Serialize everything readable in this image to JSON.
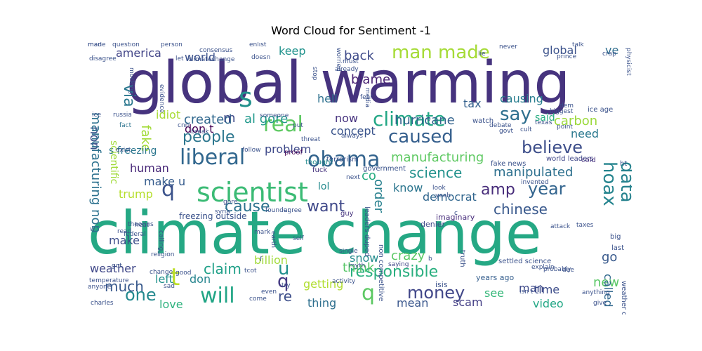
{
  "chart_data": {
    "type": "wordcloud",
    "title": "Word Cloud for Sentiment -1",
    "words": [
      {
        "text": "global warming",
        "color": "#46337e"
      },
      {
        "text": "climate change",
        "color": "#25a884"
      },
      {
        "text": "scientist",
        "color": "#3bbb75"
      },
      {
        "text": "obama",
        "color": "#33638d"
      },
      {
        "text": "liberal",
        "color": "#31678e"
      },
      {
        "text": "believe",
        "color": "#3d4e8a"
      },
      {
        "text": "climate",
        "color": "#22a785"
      },
      {
        "text": "caused",
        "color": "#355f8d"
      },
      {
        "text": "people",
        "color": "#2b768e"
      },
      {
        "text": "real",
        "color": "#5ec962"
      },
      {
        "text": "say",
        "color": "#2e6f8e"
      },
      {
        "text": "man made",
        "color": "#a5db36"
      },
      {
        "text": "s",
        "color": "#21918c"
      },
      {
        "text": "q",
        "color": "#3b528b"
      },
      {
        "text": "q",
        "color": "#5cc863"
      },
      {
        "text": "q",
        "color": "#443a83"
      },
      {
        "text": "u",
        "color": "#21908d"
      },
      {
        "text": "t",
        "color": "#bddf26"
      },
      {
        "text": "will",
        "color": "#21a585"
      },
      {
        "text": "one",
        "color": "#23898e"
      },
      {
        "text": "much",
        "color": "#38598c"
      },
      {
        "text": "responsible",
        "color": "#29af7f"
      },
      {
        "text": "money",
        "color": "#404688"
      },
      {
        "text": "year",
        "color": "#32648e"
      },
      {
        "text": "amp",
        "color": "#472c7a"
      },
      {
        "text": "hoax",
        "color": "#25848e"
      },
      {
        "text": "data",
        "color": "#26828e"
      },
      {
        "text": "cause",
        "color": "#2c728e"
      },
      {
        "text": "want",
        "color": "#3f4889"
      },
      {
        "text": "claim",
        "color": "#1fa088"
      },
      {
        "text": "chinese",
        "color": "#38588c"
      },
      {
        "text": "manufacturing",
        "color": "#5ec962"
      },
      {
        "text": "science",
        "color": "#21918c"
      },
      {
        "text": "manipulated",
        "color": "#2d708e"
      },
      {
        "text": "hurricane",
        "color": "#33638d"
      },
      {
        "text": "concept",
        "color": "#3a548c"
      },
      {
        "text": "al gore",
        "color": "#1f988b"
      },
      {
        "text": "created",
        "color": "#31688e"
      },
      {
        "text": "blame",
        "color": "#482173"
      },
      {
        "text": "back",
        "color": "#3e4a89"
      },
      {
        "text": "america",
        "color": "#414487"
      },
      {
        "text": "world",
        "color": "#3b518b"
      },
      {
        "text": "keep",
        "color": "#20928c"
      },
      {
        "text": "via",
        "color": "#2a778e"
      },
      {
        "text": "non",
        "color": "#3b528b"
      },
      {
        "text": "manufacturing non",
        "color": "#2c718e"
      },
      {
        "text": "fake",
        "color": "#a2da37"
      },
      {
        "text": "idiot",
        "color": "#a8db34"
      },
      {
        "text": "don t",
        "color": "#440154"
      },
      {
        "text": "s freezing",
        "color": "#2a768e"
      },
      {
        "text": "human",
        "color": "#482878"
      },
      {
        "text": "make u",
        "color": "#365c8d"
      },
      {
        "text": "trump",
        "color": "#b5de2b"
      },
      {
        "text": "problem",
        "color": "#3e4989"
      },
      {
        "text": "lol",
        "color": "#238a8d"
      },
      {
        "text": "co",
        "color": "#26ad81"
      },
      {
        "text": "know",
        "color": "#2b758e"
      },
      {
        "text": "democrat",
        "color": "#31668e"
      },
      {
        "text": "order",
        "color": "#27808e"
      },
      {
        "text": "hell",
        "color": "#2d708e"
      },
      {
        "text": "now",
        "color": "#46327e"
      },
      {
        "text": "tax",
        "color": "#34618d"
      },
      {
        "text": "causing",
        "color": "#287d8e"
      },
      {
        "text": "carbon",
        "color": "#9bd93c"
      },
      {
        "text": "need",
        "color": "#2a788e"
      },
      {
        "text": "said",
        "color": "#27ad81"
      },
      {
        "text": "global",
        "color": "#3b528b"
      },
      {
        "text": "ve",
        "color": "#2e6e8e"
      },
      {
        "text": "m",
        "color": "#3e4a89"
      },
      {
        "text": "make",
        "color": "#3d4d8a"
      },
      {
        "text": "weather",
        "color": "#3f4788"
      },
      {
        "text": "left",
        "color": "#21918c"
      },
      {
        "text": "don",
        "color": "#25848e"
      },
      {
        "text": "billion",
        "color": "#a0da39"
      },
      {
        "text": "think",
        "color": "#56c667"
      },
      {
        "text": "snow",
        "color": "#228c8d"
      },
      {
        "text": "crazy",
        "color": "#5ac864"
      },
      {
        "text": "getting",
        "color": "#b0dd2f"
      },
      {
        "text": "thing",
        "color": "#2e6f8e"
      },
      {
        "text": "re",
        "color": "#3d4e8a"
      },
      {
        "text": "mean",
        "color": "#39568c"
      },
      {
        "text": "scam",
        "color": "#433e85"
      },
      {
        "text": "see",
        "color": "#35b779"
      },
      {
        "text": "man",
        "color": "#3e4989"
      },
      {
        "text": "time",
        "color": "#3d4d8a"
      },
      {
        "text": "new",
        "color": "#58c765"
      },
      {
        "text": "video",
        "color": "#22a785"
      },
      {
        "text": "called",
        "color": "#31688e"
      },
      {
        "text": "go",
        "color": "#38598c"
      },
      {
        "text": "love",
        "color": "#2db27d"
      },
      {
        "text": "freezing outside",
        "color": "#3b528b"
      },
      {
        "text": "settled science",
        "color": "#3b528b"
      },
      {
        "text": "years ago",
        "color": "#355e8d"
      },
      {
        "text": "denier",
        "color": "#3e4989"
      },
      {
        "text": "imaginary",
        "color": "#472d7b"
      },
      {
        "text": "government",
        "color": "#3a538b"
      },
      {
        "text": "world leaders",
        "color": "#3f4788"
      },
      {
        "text": "fake news",
        "color": "#3b528b"
      },
      {
        "text": "cold",
        "color": "#472f7d"
      },
      {
        "text": "scientific",
        "color": "#a0da39"
      },
      {
        "text": "fact",
        "color": "#2c738e"
      },
      {
        "text": "terrorism",
        "color": "#3b528b"
      },
      {
        "text": "thought",
        "color": "#238a8d"
      },
      {
        "text": "proof",
        "color": "#440154"
      },
      {
        "text": "fuck",
        "color": "#46337e"
      },
      {
        "text": "leaders duped",
        "color": "#3b528b"
      },
      {
        "text": "guy",
        "color": "#46337e"
      },
      {
        "text": "non competitive",
        "color": "#3b528b"
      },
      {
        "text": "saying",
        "color": "#404688"
      },
      {
        "text": "myth",
        "color": "#3b528b"
      },
      {
        "text": "single",
        "color": "#3b528b"
      },
      {
        "text": "truth",
        "color": "#3b528b"
      },
      {
        "text": "probably",
        "color": "#3b528b"
      },
      {
        "text": "due",
        "color": "#3b528b"
      },
      {
        "text": "explain",
        "color": "#3b528b"
      },
      {
        "text": "anything",
        "color": "#3b528b"
      },
      {
        "text": "isn t",
        "color": "#3b528b"
      },
      {
        "text": "give",
        "color": "#3b528b"
      },
      {
        "text": "weather channel",
        "color": "#3b528b"
      },
      {
        "text": "attack",
        "color": "#3b528b"
      },
      {
        "text": "taxes",
        "color": "#3b528b"
      },
      {
        "text": "big",
        "color": "#3b528b"
      },
      {
        "text": "last",
        "color": "#3b528b"
      },
      {
        "text": "ht",
        "color": "#3b528b"
      },
      {
        "text": "physicist",
        "color": "#3b528b"
      },
      {
        "text": "ice age",
        "color": "#3b528b"
      },
      {
        "text": "biggest",
        "color": "#3b528b"
      },
      {
        "text": "dem",
        "color": "#3b528b"
      },
      {
        "text": "point",
        "color": "#3b528b"
      },
      {
        "text": "texas",
        "color": "#3b528b"
      },
      {
        "text": "cult",
        "color": "#3b528b"
      },
      {
        "text": "govt",
        "color": "#3b528b"
      },
      {
        "text": "debate",
        "color": "#3b528b"
      },
      {
        "text": "watch",
        "color": "#3b528b"
      },
      {
        "text": "fear",
        "color": "#3b528b"
      },
      {
        "text": "always",
        "color": "#3b528b"
      },
      {
        "text": "threat",
        "color": "#3b528b"
      },
      {
        "text": "put",
        "color": "#3b528b"
      },
      {
        "text": "follow",
        "color": "#3b528b"
      },
      {
        "text": "someone",
        "color": "#3b528b"
      },
      {
        "text": "break",
        "color": "#3b528b"
      },
      {
        "text": "exist",
        "color": "#3b528b"
      },
      {
        "text": "syria",
        "color": "#3b528b"
      },
      {
        "text": "founder",
        "color": "#3b528b"
      },
      {
        "text": "agree",
        "color": "#3b528b"
      },
      {
        "text": "gore",
        "color": "#3b528b"
      },
      {
        "text": "theories",
        "color": "#3b528b"
      },
      {
        "text": "federal",
        "color": "#3b528b"
      },
      {
        "text": "heat",
        "color": "#3b528b"
      },
      {
        "text": "calling",
        "color": "#3b528b"
      },
      {
        "text": "mark",
        "color": "#3b528b"
      },
      {
        "text": "earth",
        "color": "#3b528b"
      },
      {
        "text": "self",
        "color": "#3b528b"
      },
      {
        "text": "got",
        "color": "#3b528b"
      },
      {
        "text": "religion",
        "color": "#3b528b"
      },
      {
        "text": "tcot",
        "color": "#3b528b"
      },
      {
        "text": "good",
        "color": "#3b528b"
      },
      {
        "text": "change",
        "color": "#3b528b"
      },
      {
        "text": "sad",
        "color": "#3b528b"
      },
      {
        "text": "charles",
        "color": "#3b528b"
      },
      {
        "text": "anyone",
        "color": "#3b528b"
      },
      {
        "text": "temperature",
        "color": "#3b528b"
      },
      {
        "text": "w",
        "color": "#3b528b"
      },
      {
        "text": "read",
        "color": "#3b528b"
      },
      {
        "text": "even",
        "color": "#3b528b"
      },
      {
        "text": "come",
        "color": "#3b528b"
      },
      {
        "text": "try",
        "color": "#3b528b"
      },
      {
        "text": "activity",
        "color": "#3b528b"
      },
      {
        "text": "next",
        "color": "#3b528b"
      },
      {
        "text": "look",
        "color": "#3b528b"
      },
      {
        "text": "yeah",
        "color": "#3b528b"
      },
      {
        "text": "invented",
        "color": "#3b528b"
      },
      {
        "text": "question",
        "color": "#3b528b"
      },
      {
        "text": "person",
        "color": "#3b528b"
      },
      {
        "text": "consensus",
        "color": "#3b528b"
      },
      {
        "text": "climatechange",
        "color": "#3b528b"
      },
      {
        "text": "doesn",
        "color": "#3b528b"
      },
      {
        "text": "enlist",
        "color": "#3b528b"
      },
      {
        "text": "must",
        "color": "#3b528b"
      },
      {
        "text": "worried",
        "color": "#3b528b"
      },
      {
        "text": "already",
        "color": "#3b528b"
      },
      {
        "text": "stop",
        "color": "#3b528b"
      },
      {
        "text": "media",
        "color": "#3b528b"
      },
      {
        "text": "never",
        "color": "#3b528b"
      },
      {
        "text": "lie",
        "color": "#3b528b"
      },
      {
        "text": "talk",
        "color": "#3b528b"
      },
      {
        "text": "prince",
        "color": "#3b528b"
      },
      {
        "text": "crap",
        "color": "#3b528b"
      },
      {
        "text": "disagree",
        "color": "#3b528b"
      },
      {
        "text": "mocking",
        "color": "#3b528b"
      },
      {
        "text": "evidence",
        "color": "#3b528b"
      },
      {
        "text": "ice",
        "color": "#3b528b"
      },
      {
        "text": "russia",
        "color": "#3b528b"
      },
      {
        "text": "cnn",
        "color": "#3b528b"
      },
      {
        "text": "let",
        "color": "#3b528b"
      },
      {
        "text": "o",
        "color": "#3b528b"
      },
      {
        "text": "c",
        "color": "#3b528b"
      },
      {
        "text": "f",
        "color": "#3b528b"
      },
      {
        "text": "b",
        "color": "#3b528b"
      },
      {
        "text": "isis",
        "color": "#3b528b"
      },
      {
        "text": "made",
        "color": "#3b528b"
      },
      {
        "text": "man",
        "color": "#3b528b"
      }
    ]
  }
}
